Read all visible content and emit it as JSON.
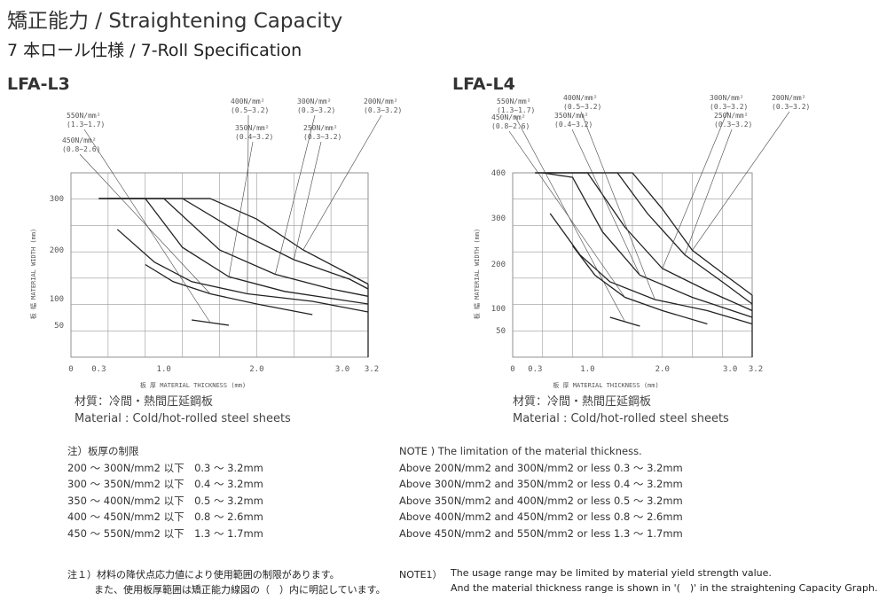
{
  "title": "矯正能力 / Straightening Capacity",
  "subtitle": "7 本ロール仕様 / 7-Roll Specification",
  "chart_data": [
    {
      "type": "line",
      "title": "LFA-L3",
      "xlabel": "板  厚   MATERIAL THICKNESS (mm)",
      "ylabel": "板  幅   MATERIAL WIDTH (mm)",
      "xticks": [
        "0",
        "0.3",
        "1.0",
        "2.0",
        "3.0",
        "3.2"
      ],
      "yticks": [
        "50",
        "100",
        "200",
        "300"
      ],
      "series": [
        {
          "name": "200N/mm²",
          "range": "(0.3~3.2)",
          "x": [
            0.3,
            1.5,
            2.0,
            2.5,
            3.0,
            3.2
          ],
          "y": [
            300,
            300,
            260,
            200,
            150,
            130
          ]
        },
        {
          "name": "250N/mm²",
          "range": "(0.3~3.2)",
          "x": [
            0.3,
            1.2,
            1.8,
            2.4,
            3.0,
            3.2
          ],
          "y": [
            300,
            300,
            235,
            180,
            140,
            120
          ]
        },
        {
          "name": "300N/mm²",
          "range": "(0.3~3.2)",
          "x": [
            0.3,
            1.0,
            1.6,
            2.2,
            2.8,
            3.2
          ],
          "y": [
            300,
            300,
            200,
            150,
            120,
            105
          ]
        },
        {
          "name": "350N/mm²",
          "range": "(0.4~3.2)",
          "x": [
            0.4,
            0.8,
            1.2,
            1.7,
            2.3,
            3.2
          ],
          "y": [
            300,
            300,
            205,
            145,
            115,
            90
          ]
        },
        {
          "name": "400N/mm²",
          "range": "(0.5~3.2)",
          "x": [
            0.5,
            0.9,
            1.3,
            1.9,
            2.6,
            3.2
          ],
          "y": [
            240,
            175,
            135,
            110,
            95,
            75
          ]
        },
        {
          "name": "450N/mm²",
          "range": "(0.8~2.6)",
          "x": [
            0.8,
            1.1,
            1.5,
            2.0,
            2.6
          ],
          "y": [
            170,
            135,
            110,
            90,
            70
          ]
        },
        {
          "name": "550N/mm²",
          "range": "(1.3~1.7)",
          "x": [
            1.3,
            1.5,
            1.7
          ],
          "y": [
            60,
            55,
            50
          ]
        }
      ]
    },
    {
      "type": "line",
      "title": "LFA-L4",
      "xlabel": "板  厚   MATERIAL THICKNESS (mm)",
      "ylabel": "板  幅   MATERIAL WIDTH (mm)",
      "xticks": [
        "0",
        "0.3",
        "1.0",
        "2.0",
        "3.0",
        "3.2"
      ],
      "yticks": [
        "50",
        "100",
        "200",
        "300",
        "400"
      ],
      "series": [
        {
          "name": "200N/mm²",
          "range": "(0.3~3.2)",
          "x": [
            0.3,
            1.6,
            2.0,
            2.4,
            2.8,
            3.2
          ],
          "y": [
            400,
            400,
            320,
            230,
            180,
            130
          ]
        },
        {
          "name": "250N/mm²",
          "range": "(0.3~3.2)",
          "x": [
            0.3,
            1.4,
            1.8,
            2.3,
            2.8,
            3.2
          ],
          "y": [
            400,
            400,
            310,
            220,
            160,
            110
          ]
        },
        {
          "name": "300N/mm²",
          "range": "(0.3~3.2)",
          "x": [
            0.3,
            1.0,
            1.5,
            2.0,
            2.6,
            3.2
          ],
          "y": [
            400,
            400,
            280,
            190,
            140,
            95
          ]
        },
        {
          "name": "350N/mm²",
          "range": "(0.4~3.2)",
          "x": [
            0.4,
            0.8,
            1.2,
            1.7,
            2.4,
            3.2
          ],
          "y": [
            400,
            390,
            270,
            175,
            125,
            80
          ]
        },
        {
          "name": "400N/mm²",
          "range": "(0.5~3.2)",
          "x": [
            0.5,
            0.9,
            1.3,
            1.9,
            2.6,
            3.2
          ],
          "y": [
            310,
            220,
            160,
            120,
            95,
            65
          ]
        },
        {
          "name": "450N/mm²",
          "range": "(0.8~2.6)",
          "x": [
            0.8,
            1.1,
            1.5,
            2.0,
            2.6
          ],
          "y": [
            240,
            175,
            125,
            95,
            65
          ]
        },
        {
          "name": "550N/mm²",
          "range": "(1.3~1.7)",
          "x": [
            1.3,
            1.5,
            1.7
          ],
          "y": [
            80,
            70,
            60
          ]
        }
      ]
    }
  ],
  "material": {
    "jp": "材質：冷間・熱間圧延鋼板",
    "en": "Material : Cold/hot-rolled steel sheets"
  },
  "note_jp": {
    "title": "注）板厚の制限",
    "rows": [
      "200 ～ 300N/mm2 以下　0.3 ～ 3.2mm",
      "300 ～ 350N/mm2 以下　0.4 ～ 3.2mm",
      "350 ～ 400N/mm2 以下　0.5 ～ 3.2mm",
      "400 ～ 450N/mm2 以下　0.8 ～ 2.6mm",
      "450 ～ 550N/mm2 以下　1.3 ～ 1.7mm"
    ]
  },
  "note_en": {
    "title": "NOTE ) The limitation of the material thickness.",
    "rows": [
      "Above 200N/mm2 and 300N/mm2 or less  0.3 ～ 3.2mm",
      "Above 300N/mm2 and 350N/mm2 or less  0.4 ～ 3.2mm",
      "Above 350N/mm2 and 400N/mm2 or less  0.5 ～ 3.2mm",
      "Above 400N/mm2 and 450N/mm2 or less  0.8 ～ 2.6mm",
      "Above 450N/mm2 and 550N/mm2 or less  1.3 ～ 1.7mm"
    ]
  },
  "footnote_jp": {
    "line1": "注１）材料の降伏点応力値により使用範囲の制限があります。",
    "line2": "また、使用板厚範囲は矯正能力線図の（　）内に明記しています。"
  },
  "footnote_en": {
    "label": "NOTE1）",
    "line1": "The usage range may be limited by material yield strength value.",
    "line2": "And the material thickness range is shown in '(　)' in the straightening Capacity Graph."
  }
}
